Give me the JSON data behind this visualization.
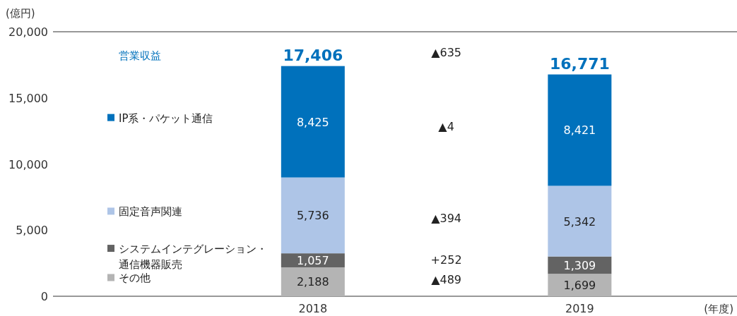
{
  "chart_data": {
    "type": "bar",
    "stacked": true,
    "categories": [
      "2018",
      "2019"
    ],
    "series": [
      {
        "name": "その他",
        "color": "#b4b4b4",
        "values": [
          2188,
          1699
        ],
        "value_labels": [
          "2,188",
          "1,699"
        ]
      },
      {
        "name": "システムインテグレーション・通信機器販売",
        "color": "#636363",
        "values": [
          1057,
          1309
        ],
        "value_labels": [
          "1,057",
          "1,309"
        ]
      },
      {
        "name": "固定音声関連",
        "color": "#aec5e7",
        "values": [
          5736,
          5342
        ],
        "value_labels": [
          "5,736",
          "5,342"
        ]
      },
      {
        "name": "IP系・パケット通信",
        "color": "#0071bc",
        "values": [
          8425,
          8421
        ],
        "value_labels": [
          "8,425",
          "8,421"
        ]
      }
    ],
    "ylim": [
      0,
      20000
    ],
    "yticks": [
      {
        "value": 0,
        "label": "0"
      },
      {
        "value": 5000,
        "label": "5,000"
      },
      {
        "value": 10000,
        "label": "10,000"
      },
      {
        "value": 15000,
        "label": "15,000"
      },
      {
        "value": 20000,
        "label": "20,000"
      }
    ],
    "ylabel": "(億円)",
    "xlabel": "(年度)",
    "totals": [
      "17,406",
      "16,771"
    ],
    "ref_lines": [
      {
        "axis": "y",
        "value": 20000,
        "color": "#333333"
      }
    ],
    "legend": "left",
    "grid": false,
    "annotations": [
      "営業収益",
      "▲635",
      "+252",
      "▲489",
      "▲394",
      "▲4"
    ]
  }
}
